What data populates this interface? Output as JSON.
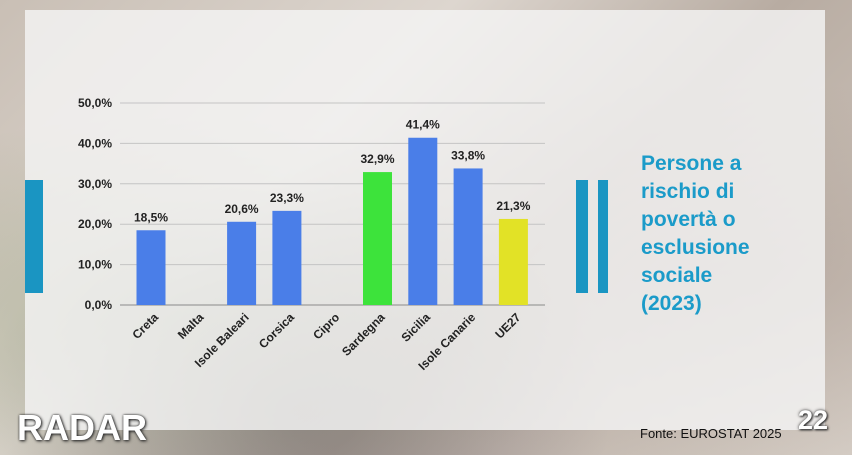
{
  "chart_data": {
    "type": "bar",
    "categories": [
      "Creta",
      "Malta",
      "Isole Baleari",
      "Corsica",
      "Cipro",
      "Sardegna",
      "Sicilia",
      "Isole Canarie",
      "UE27"
    ],
    "values": [
      18.5,
      null,
      20.6,
      23.3,
      null,
      32.9,
      41.4,
      33.8,
      21.3
    ],
    "data_labels": [
      "18,5%",
      "",
      "20,6%",
      "23,3%",
      "",
      "32,9%",
      "41,4%",
      "33,8%",
      "21,3%"
    ],
    "bar_colors": [
      "#4a7ee8",
      "#4a7ee8",
      "#4a7ee8",
      "#4a7ee8",
      "#4a7ee8",
      "#3de33b",
      "#4a7ee8",
      "#4a7ee8",
      "#e2e226"
    ],
    "y_ticks": [
      0,
      10,
      20,
      30,
      40,
      50
    ],
    "y_tick_labels": [
      "0,0%",
      "10,0%",
      "20,0%",
      "30,0%",
      "40,0%",
      "50,0%"
    ],
    "ylim": [
      0,
      50
    ],
    "grid": true,
    "title": "",
    "xlabel": "",
    "ylabel": ""
  },
  "side_title": "Persone a\nrischio di\npovertà o\nesclusione\nsociale\n(2023)",
  "source": "Fonte: EUROSTAT 2025",
  "page_number": "22",
  "logo": "RADAR",
  "colors": {
    "accent": "#1a95c2",
    "title": "#1b9bc9",
    "bar_default": "#4a7ee8",
    "bar_highlight": "#3de33b",
    "bar_eu": "#e2e226"
  }
}
